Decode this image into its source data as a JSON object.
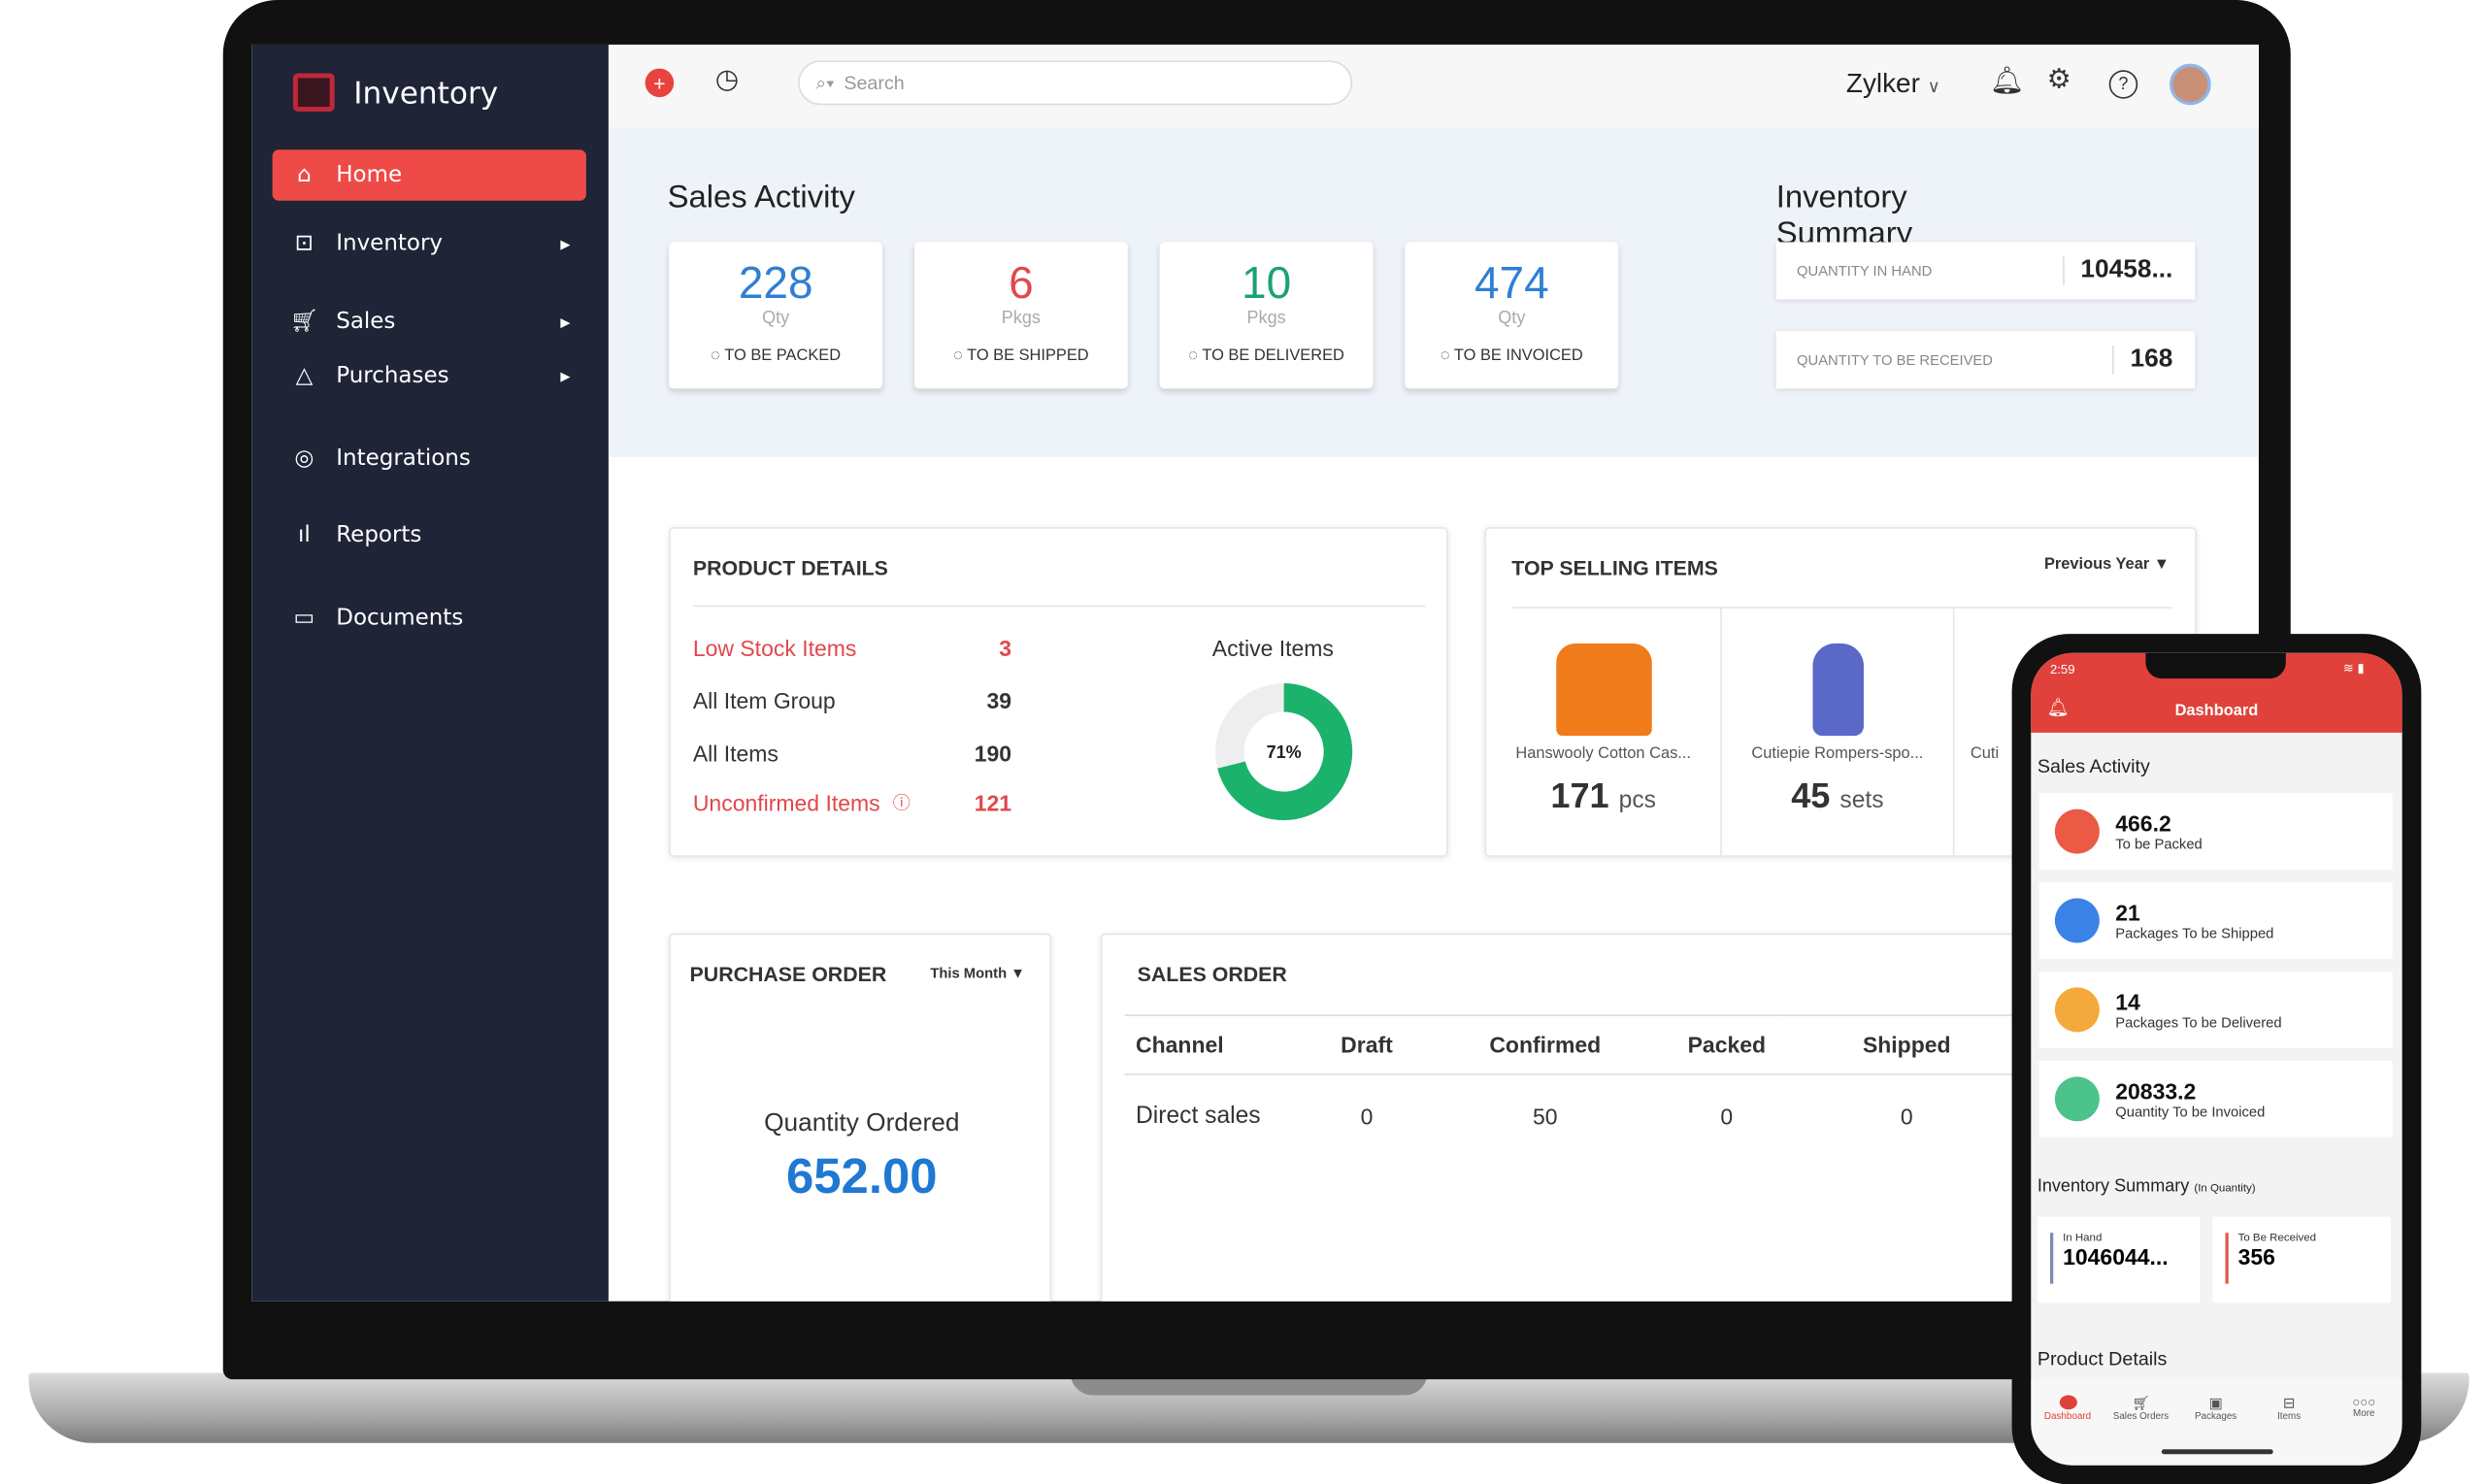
{
  "app": {
    "title": "Inventory"
  },
  "sidebar": {
    "items": [
      {
        "label": "Home",
        "icon": "home-icon",
        "active": true
      },
      {
        "label": "Inventory",
        "icon": "inventory-cart-icon",
        "submenu": true
      },
      {
        "label": "Sales",
        "icon": "cart-icon",
        "submenu": true
      },
      {
        "label": "Purchases",
        "icon": "bag-icon",
        "submenu": true
      },
      {
        "label": "Integrations",
        "icon": "integrations-icon"
      },
      {
        "label": "Reports",
        "icon": "bar-chart-icon"
      },
      {
        "label": "Documents",
        "icon": "folder-icon"
      }
    ]
  },
  "topbar": {
    "search_placeholder": "Search",
    "org": "Zylker"
  },
  "sales_activity": {
    "title": "Sales Activity",
    "cards": [
      {
        "value": "228",
        "unit": "Qty",
        "label": "TO BE PACKED",
        "color": "#2f7fd3"
      },
      {
        "value": "6",
        "unit": "Pkgs",
        "label": "TO BE SHIPPED",
        "color": "#e2474b"
      },
      {
        "value": "10",
        "unit": "Pkgs",
        "label": "TO BE DELIVERED",
        "color": "#1aa36f"
      },
      {
        "value": "474",
        "unit": "Qty",
        "label": "TO BE INVOICED",
        "color": "#2f7fd3"
      }
    ]
  },
  "inventory_summary": {
    "title": "Inventory Summary",
    "rows": [
      {
        "label": "QUANTITY IN HAND",
        "value": "10458..."
      },
      {
        "label": "QUANTITY TO BE RECEIVED",
        "value": "168"
      }
    ]
  },
  "product_details": {
    "title": "PRODUCT DETAILS",
    "rows": [
      {
        "label": "Low Stock Items",
        "value": "3"
      },
      {
        "label": "All Item Group",
        "value": "39"
      },
      {
        "label": "All Items",
        "value": "190"
      },
      {
        "label": "Unconfirmed Items",
        "value": "121"
      }
    ],
    "active_items": {
      "label": "Active Items",
      "percent": 71,
      "percent_label": "71%"
    }
  },
  "top_selling": {
    "title": "TOP SELLING ITEMS",
    "filter": "Previous Year",
    "items": [
      {
        "name": "Hanswooly Cotton Cas...",
        "qty": "171",
        "unit": "pcs"
      },
      {
        "name": "Cutiepie Rompers-spo...",
        "qty": "45",
        "unit": "sets"
      },
      {
        "name": "Cuti"
      }
    ]
  },
  "purchase_order": {
    "title": "PURCHASE ORDER",
    "filter": "This Month",
    "label": "Quantity Ordered",
    "value": "652.00"
  },
  "sales_order": {
    "title": "SALES ORDER",
    "columns": [
      "Channel",
      "Draft",
      "Confirmed",
      "Packed",
      "Shipped"
    ],
    "rows": [
      [
        "Direct sales",
        "0",
        "50",
        "0",
        "0"
      ]
    ]
  },
  "phone": {
    "time": "2:59",
    "header": "Dashboard",
    "sales_title": "Sales Activity",
    "rows": [
      {
        "value": "466.2",
        "label": "To be Packed",
        "color": "#ea5a45"
      },
      {
        "value": "21",
        "label": "Packages To be Shipped",
        "color": "#3b82e6"
      },
      {
        "value": "14",
        "label": "Packages To be Delivered",
        "color": "#f3a93b"
      },
      {
        "value": "20833.2",
        "label": "Quantity To be Invoiced",
        "color": "#4cc38a"
      }
    ],
    "inv_title": "Inventory Summary",
    "inv_sub": "(In Quantity)",
    "in_hand_label": "In Hand",
    "in_hand": "1046044...",
    "to_receive_label": "To Be Received",
    "to_receive": "356",
    "product_title": "Product Details",
    "tabs": [
      "Dashboard",
      "Sales Orders",
      "Packages",
      "Items",
      "More"
    ]
  }
}
